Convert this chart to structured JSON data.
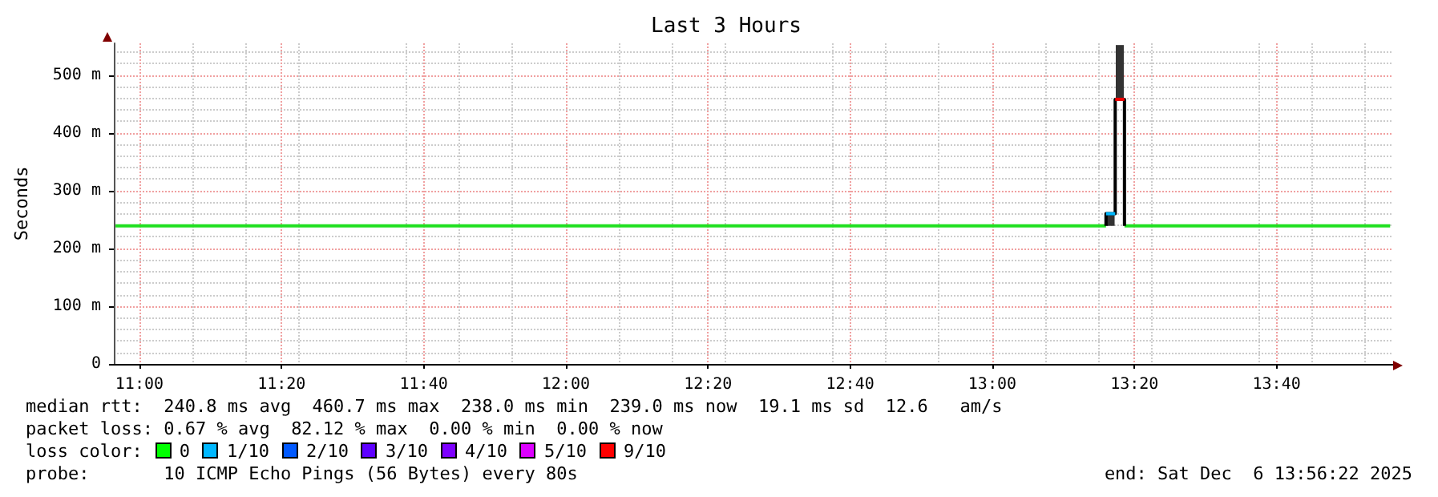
{
  "chart_data": {
    "type": "line",
    "title": "Last 3 Hours",
    "ylabel": "Seconds",
    "xlim": [
      10.94,
      13.94
    ],
    "ylim": [
      0,
      555
    ],
    "xticks": [
      {
        "value": 11,
        "label": "11:00"
      },
      {
        "value": 11.3333,
        "label": "11:20"
      },
      {
        "value": 11.6667,
        "label": "11:40"
      },
      {
        "value": 12,
        "label": "12:00"
      },
      {
        "value": 12.3333,
        "label": "12:20"
      },
      {
        "value": 12.6667,
        "label": "12:40"
      },
      {
        "value": 13,
        "label": "13:00"
      },
      {
        "value": 13.3333,
        "label": "13:20"
      },
      {
        "value": 13.6667,
        "label": "13:40"
      }
    ],
    "yticks": [
      0,
      {
        "value": 100,
        "label": "100 m"
      },
      {
        "value": 200,
        "label": "200 m"
      },
      {
        "value": 300,
        "label": "300 m"
      },
      {
        "value": 400,
        "label": "400 m"
      },
      {
        "value": 500,
        "label": "500 m"
      }
    ],
    "grid": true,
    "marker": "none",
    "line_style": "solid",
    "series": [
      {
        "type": "bar",
        "color": "#333333",
        "x": [
          13.2775,
          13.299
        ],
        "base": [
          239,
          458
        ],
        "values": [
          21,
          94
        ]
      },
      {
        "color": "#20e020",
        "x": [
          10.944,
          13.2667,
          13.28,
          13.31,
          13.933
        ],
        "values": [
          239,
          239,
          null,
          239,
          239
        ]
      },
      {
        "color": "#000000",
        "x": [
          13.2667,
          13.2667,
          13.2883,
          13.2883,
          13.31,
          13.31
        ],
        "values": [
          239,
          260,
          260,
          458,
          458,
          239
        ]
      },
      {
        "color": "#00b8ff",
        "x": [
          13.2667,
          13.2883
        ],
        "values": [
          260,
          260
        ]
      },
      {
        "color": "#ff0000",
        "x": [
          13.2883,
          13.31
        ],
        "values": [
          458,
          458
        ]
      }
    ],
    "annotations": [
      "median rtt:  240.8 ms avg  460.7 ms max  238.0 ms min  239.0 ms now  19.1 ms sd  12.6   am/s",
      "packet loss: 0.67 % avg  82.12 % max  0.00 % min  0.00 % now",
      "loss color:",
      "0",
      "1/10",
      "2/10",
      "3/10",
      "4/10",
      "5/10",
      "9/10",
      "probe:       10 ICMP Echo Pings (56 Bytes) every 80s",
      "end: Sat Dec  6 13:56:22 2025"
    ]
  }
}
